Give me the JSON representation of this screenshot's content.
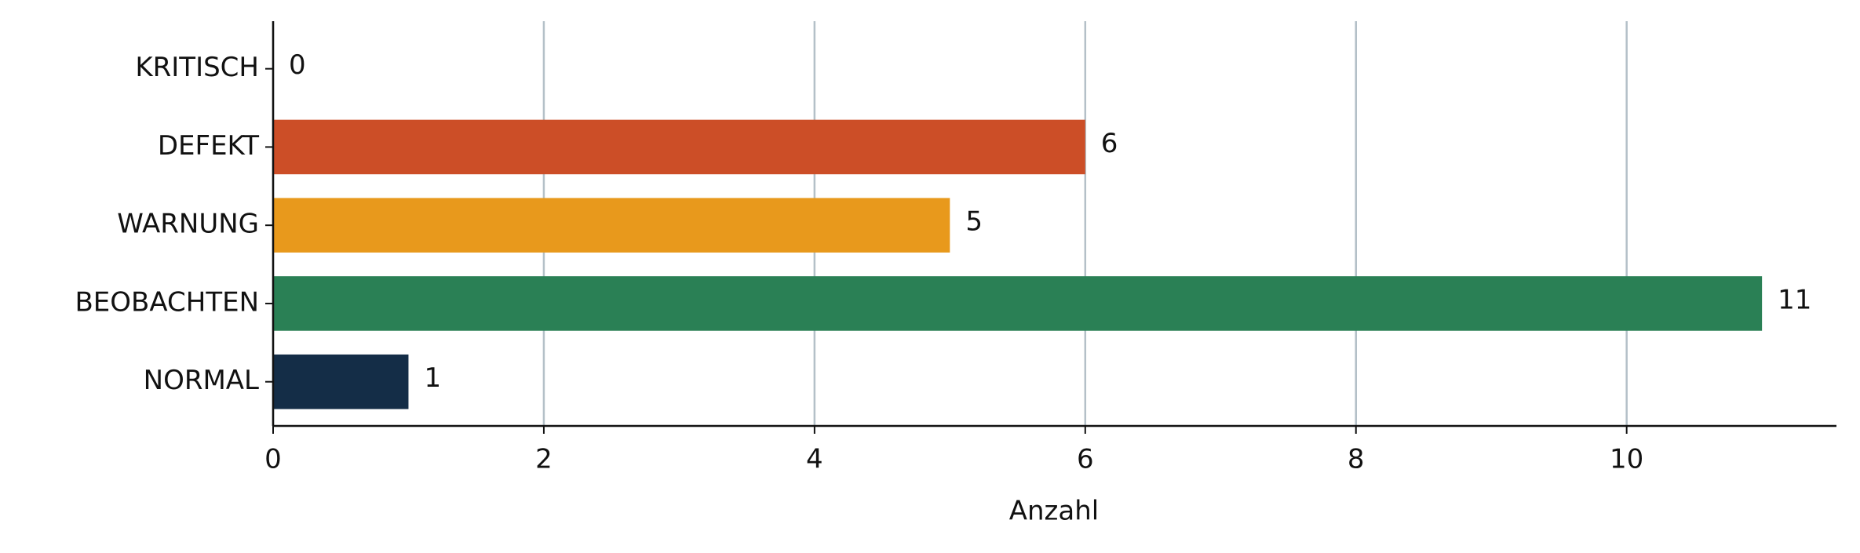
{
  "chart_data": {
    "type": "barh",
    "categories": [
      "KRITISCH",
      "DEFEKT",
      "WARNUNG",
      "BEOBACHTEN",
      "NORMAL"
    ],
    "values": [
      0,
      6,
      5,
      11,
      1
    ],
    "colors": [
      "#a32a1f",
      "#cc4e27",
      "#e8991c",
      "#2a8055",
      "#142d47"
    ],
    "xlabel": "Anzahl",
    "xlim": [
      0,
      11.55
    ],
    "xticks": [
      0,
      2,
      4,
      6,
      8,
      10
    ],
    "grid": true
  }
}
